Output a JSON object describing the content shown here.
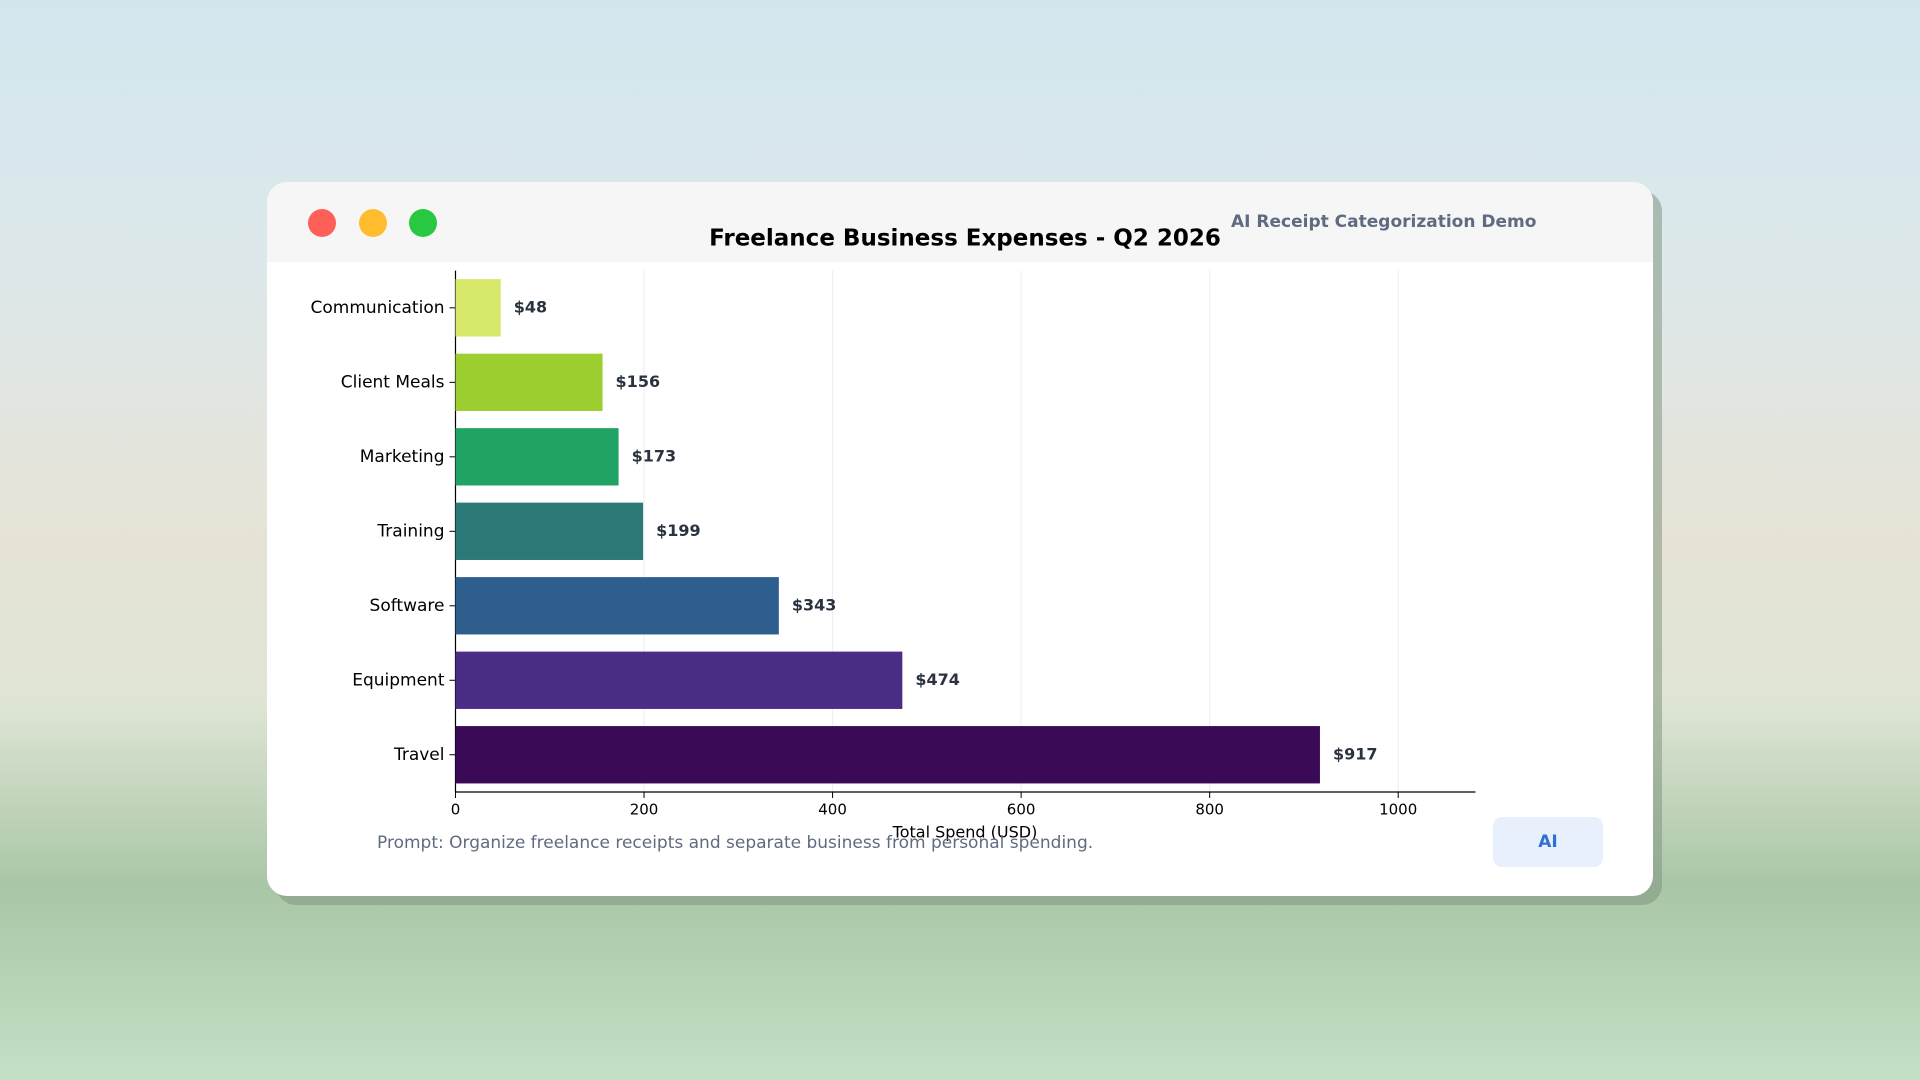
{
  "window": {
    "header": "AI Receipt Categorization Demo",
    "prompt": "Prompt: Organize freelance receipts and separate business from personal spending.",
    "button": "AI"
  },
  "chart_data": {
    "type": "bar",
    "orientation": "horizontal",
    "title": "Freelance Business Expenses - Q2 2026",
    "xlabel": "Total Spend (USD)",
    "categories": [
      "Communication",
      "Client Meals",
      "Marketing",
      "Training",
      "Software",
      "Equipment",
      "Travel"
    ],
    "values": [
      48,
      156,
      173,
      199,
      343,
      474,
      917
    ],
    "value_labels": [
      "$48",
      "$156",
      "$173",
      "$199",
      "$343",
      "$474",
      "$917"
    ],
    "colors": [
      "#d8e86a",
      "#9ccf2f",
      "#21a366",
      "#2b7a78",
      "#2e5e8d",
      "#4a2d84",
      "#3b0a57"
    ],
    "xlim": [
      0,
      1082
    ],
    "xticks": [
      0,
      200,
      400,
      600,
      800,
      1000
    ],
    "grid": true
  }
}
